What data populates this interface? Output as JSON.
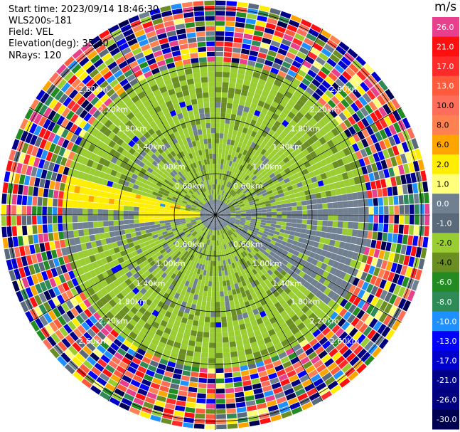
{
  "header": {
    "start_time": "Start time: 2023/09/14 18:46:30",
    "instrument": "WLS200s-181",
    "field": "Field: VEL",
    "elevation": "Elevation(deg): 35.30",
    "nrays": "NRays: 120"
  },
  "colorbar": {
    "unit": "m/s",
    "levels": [
      {
        "label": "26.0",
        "color": "#e8408c"
      },
      {
        "label": "21.0",
        "color": "#ff1010"
      },
      {
        "label": "17.0",
        "color": "#ff2a2a"
      },
      {
        "label": "13.0",
        "color": "#ff5a3c"
      },
      {
        "label": "10.0",
        "color": "#ff6e5a"
      },
      {
        "label": "8.0",
        "color": "#ff8050"
      },
      {
        "label": "6.0",
        "color": "#ffa500"
      },
      {
        "label": "2.0",
        "color": "#ffee00"
      },
      {
        "label": "1.0",
        "color": "#ffff7a"
      },
      {
        "label": "0.0",
        "color": "#708090"
      },
      {
        "label": "-1.0",
        "color": "#5a6a7a"
      },
      {
        "label": "-2.0",
        "color": "#9acd32"
      },
      {
        "label": "-4.0",
        "color": "#6b8e23"
      },
      {
        "label": "-6.0",
        "color": "#228b22"
      },
      {
        "label": "-8.0",
        "color": "#2e8b57"
      },
      {
        "label": "-10.0",
        "color": "#1e90ff"
      },
      {
        "label": "-13.0",
        "color": "#0000ff"
      },
      {
        "label": "-17.0",
        "color": "#0000cd"
      },
      {
        "label": "-21.0",
        "color": "#00008b"
      },
      {
        "label": "-26.0",
        "color": "#000080"
      },
      {
        "label": "-30.0",
        "color": "#000050"
      }
    ]
  },
  "chart_data": {
    "type": "heatmap",
    "title": "",
    "field": "VEL",
    "unit": "m/s",
    "projection": "polar PPI",
    "nrays": 120,
    "range_ring_labels": [
      "0.60km",
      "1.00km",
      "1.40km",
      "1.80km",
      "2.20km",
      "2.60km"
    ],
    "structure": {
      "inner_rings_km": "0 to 1.6",
      "dominant_values": "yellow (approx +1 to +2 m/s) to the south/southwest, green/gray (approx -1 to -4 m/s) to the north and east",
      "outer_rings": "noisy mixed values spanning -30 to 26 m/s beyond ~2.2 km"
    }
  }
}
